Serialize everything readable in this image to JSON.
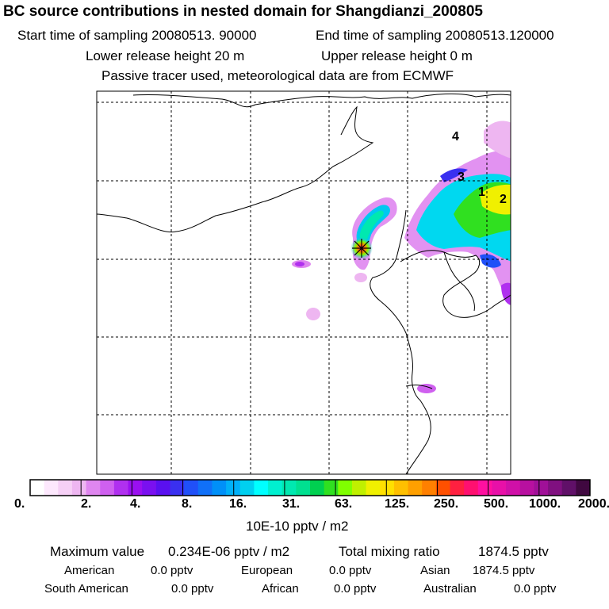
{
  "header": {
    "title": "BC  source contributions in nested domain for Shangdianzi_200805",
    "start_label": "Start time of sampling 20080513. 90000",
    "end_label": "End time of sampling 20080513.120000",
    "lower_label": "Lower release height   20 m",
    "upper_label": "Upper release height    0 m",
    "info_line": "Passive tracer used, meteorological data are from ECMWF"
  },
  "chart_data": {
    "type": "heatmap",
    "title": "BC  source contributions in nested domain for Shangdianzi_200805",
    "colorbar": {
      "tick_labels": [
        "0.",
        "2.",
        "4.",
        "8.",
        "16.",
        "31.",
        "63.",
        "125.",
        "250.",
        "500.",
        "1000.",
        "2000."
      ],
      "tick_values": [
        0,
        2,
        4,
        8,
        16,
        31,
        63,
        125,
        250,
        500,
        1000,
        2000
      ],
      "unit": "10E-10 pptv / m2",
      "colors": [
        "#ffffff",
        "#fde8fd",
        "#f6d0f6",
        "#eeb6f1",
        "#df86ef",
        "#cf60ef",
        "#b030ef",
        "#9a10f0",
        "#7a10f0",
        "#5a10f0",
        "#3a30f0",
        "#2050f8",
        "#1070f8",
        "#0090f8",
        "#00b0f8",
        "#00d0f0",
        "#00ffff",
        "#00f0d0",
        "#00e8b0",
        "#00e090",
        "#00d050",
        "#30e020",
        "#80ff00",
        "#c0f000",
        "#f0f000",
        "#ffe000",
        "#ffc000",
        "#ffa000",
        "#ff8000",
        "#ff5000",
        "#ff2040",
        "#ff1070",
        "#ff10a0",
        "#e810a8",
        "#d010a8",
        "#b810a0",
        "#a01098",
        "#801080",
        "#601068",
        "#400840"
      ]
    },
    "site_markers": [
      "1",
      "2",
      "3",
      "4"
    ],
    "grid": true
  },
  "footer": {
    "max_label": "Maximum value",
    "max_value": "0.234E-06 pptv / m2",
    "total_label": "Total mixing ratio",
    "total_value": "1874.5 pptv",
    "regions": [
      {
        "name": "American",
        "value": "0.0 pptv"
      },
      {
        "name": "European",
        "value": "0.0 pptv"
      },
      {
        "name": "Asian",
        "value": "1874.5 pptv"
      },
      {
        "name": "South American",
        "value": "0.0 pptv"
      },
      {
        "name": "African",
        "value": "0.0 pptv"
      },
      {
        "name": "Australian",
        "value": "0.0 pptv"
      }
    ]
  }
}
